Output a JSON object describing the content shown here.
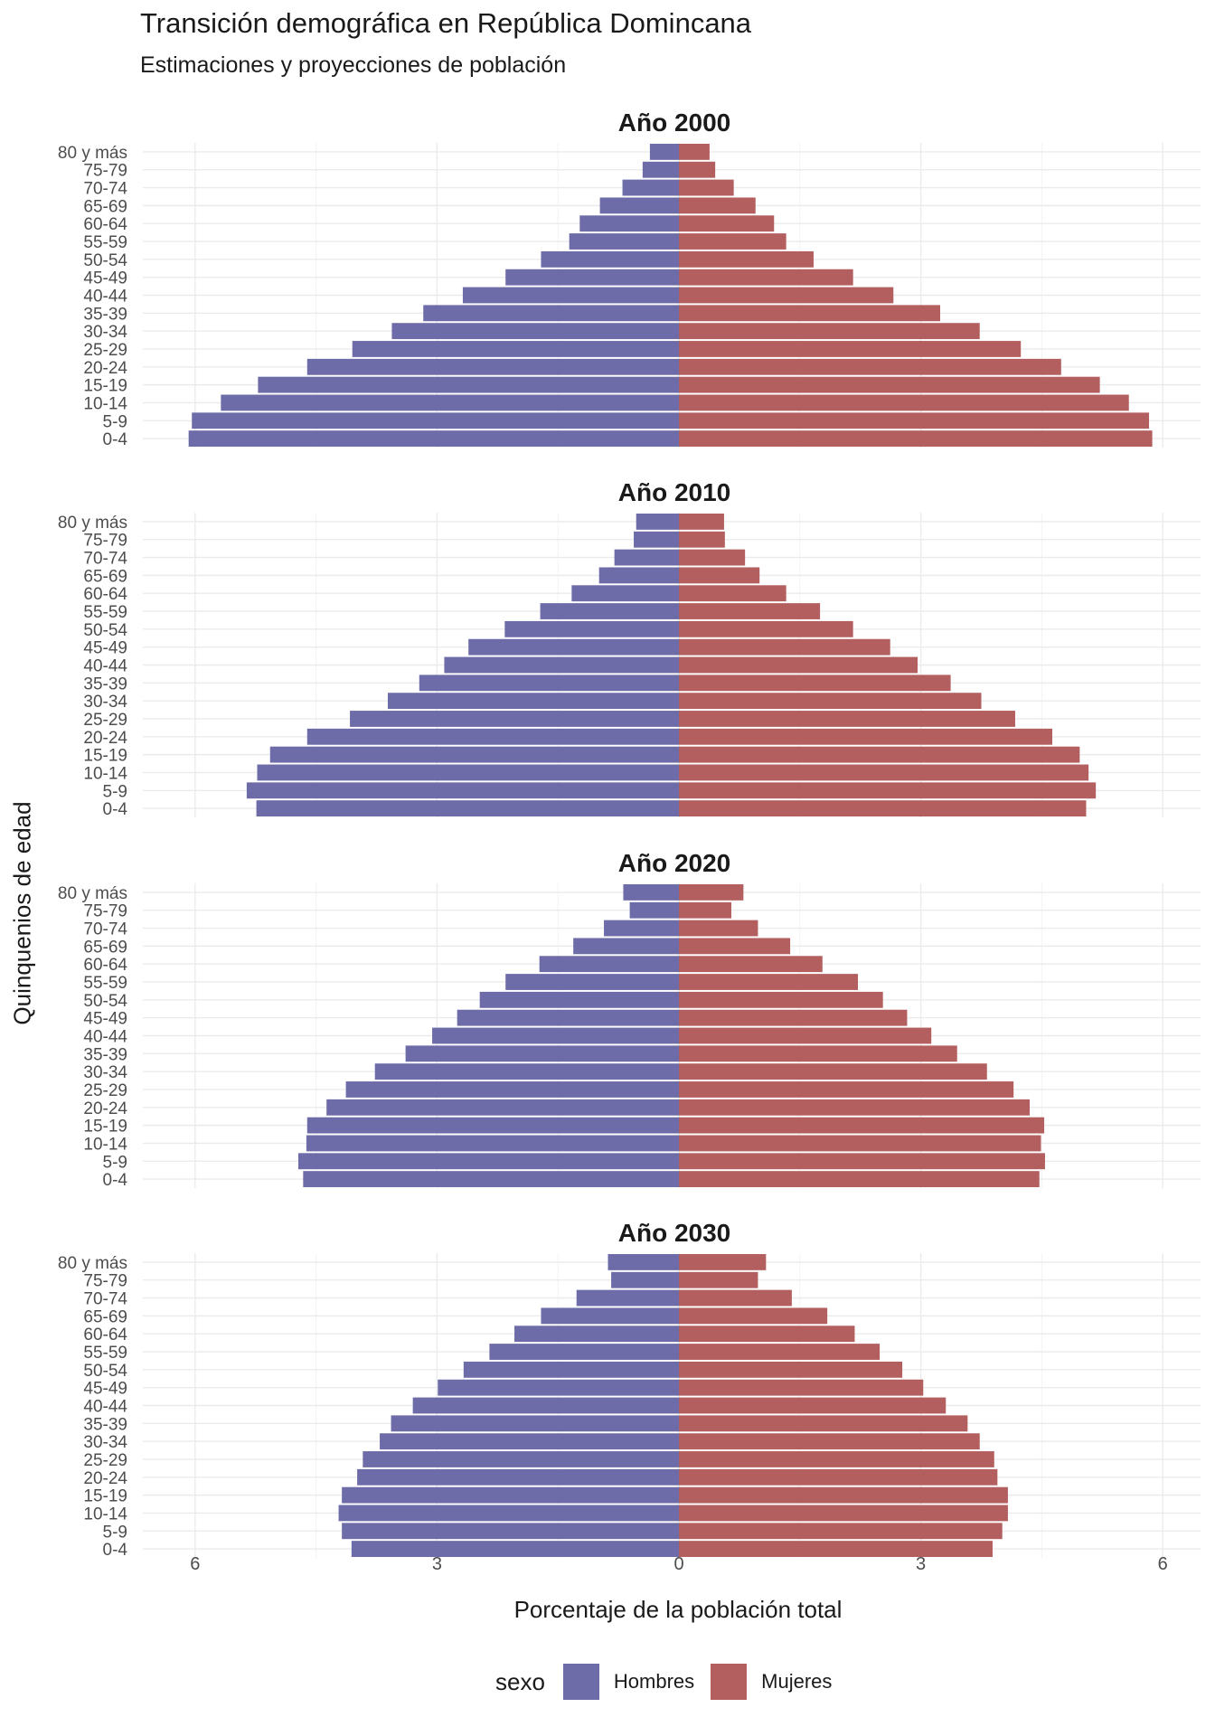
{
  "title": "Transición demográfica en República Domincana",
  "subtitle": "Estimaciones y proyecciones de población",
  "xlabel": "Porcentaje de la población total",
  "ylabel": "Quinquenios de edad",
  "legend": {
    "title": "sexo",
    "items": [
      {
        "label": "Hombres",
        "color": "#6d6ca8"
      },
      {
        "label": "Mujeres",
        "color": "#b45f5f"
      }
    ]
  },
  "chart_data": {
    "type": "bar",
    "orientation": "horizontal-population-pyramid",
    "categories": [
      "0-4",
      "5-9",
      "10-14",
      "15-19",
      "20-24",
      "25-29",
      "30-34",
      "35-39",
      "40-44",
      "45-49",
      "50-54",
      "55-59",
      "60-64",
      "65-69",
      "70-74",
      "75-79",
      "80 y más"
    ],
    "xlim": [
      -6.5,
      6.5
    ],
    "x_ticks": [
      {
        "value": -6,
        "label": "6"
      },
      {
        "value": -3,
        "label": "3"
      },
      {
        "value": 0,
        "label": "0"
      },
      {
        "value": 3,
        "label": "3"
      },
      {
        "value": 6,
        "label": "6"
      }
    ],
    "grid": true,
    "legend_position": "bottom",
    "panels": [
      {
        "title": "Año 2000",
        "series": [
          {
            "name": "Hombres",
            "values": [
              6.08,
              6.04,
              5.68,
              5.22,
              4.61,
              4.05,
              3.56,
              3.17,
              2.68,
              2.15,
              1.71,
              1.36,
              1.23,
              0.98,
              0.7,
              0.45,
              0.36
            ]
          },
          {
            "name": "Mujeres",
            "values": [
              5.87,
              5.83,
              5.58,
              5.22,
              4.74,
              4.24,
              3.73,
              3.24,
              2.66,
              2.16,
              1.67,
              1.33,
              1.18,
              0.95,
              0.68,
              0.45,
              0.38
            ]
          }
        ]
      },
      {
        "title": "Año 2010",
        "series": [
          {
            "name": "Hombres",
            "values": [
              5.24,
              5.36,
              5.23,
              5.07,
              4.61,
              4.08,
              3.61,
              3.22,
              2.91,
              2.61,
              2.16,
              1.72,
              1.33,
              0.99,
              0.8,
              0.56,
              0.53
            ]
          },
          {
            "name": "Mujeres",
            "values": [
              5.05,
              5.17,
              5.08,
              4.97,
              4.63,
              4.17,
              3.75,
              3.37,
              2.96,
              2.62,
              2.16,
              1.75,
              1.33,
              1.0,
              0.82,
              0.57,
              0.56
            ]
          }
        ]
      },
      {
        "title": "Año 2020",
        "series": [
          {
            "name": "Hombres",
            "values": [
              4.66,
              4.72,
              4.62,
              4.61,
              4.37,
              4.13,
              3.77,
              3.39,
              3.06,
              2.75,
              2.47,
              2.15,
              1.73,
              1.31,
              0.93,
              0.61,
              0.69
            ]
          },
          {
            "name": "Mujeres",
            "values": [
              4.47,
              4.54,
              4.49,
              4.53,
              4.35,
              4.15,
              3.82,
              3.45,
              3.13,
              2.83,
              2.53,
              2.22,
              1.78,
              1.38,
              0.98,
              0.65,
              0.8
            ]
          }
        ]
      },
      {
        "title": "Año 2030",
        "series": [
          {
            "name": "Hombres",
            "values": [
              4.06,
              4.18,
              4.22,
              4.18,
              3.99,
              3.92,
              3.71,
              3.57,
              3.3,
              2.99,
              2.67,
              2.35,
              2.04,
              1.71,
              1.27,
              0.84,
              0.88
            ]
          },
          {
            "name": "Mujeres",
            "values": [
              3.89,
              4.01,
              4.08,
              4.08,
              3.95,
              3.91,
              3.73,
              3.58,
              3.31,
              3.03,
              2.77,
              2.49,
              2.18,
              1.84,
              1.4,
              0.98,
              1.08
            ]
          }
        ]
      }
    ]
  }
}
